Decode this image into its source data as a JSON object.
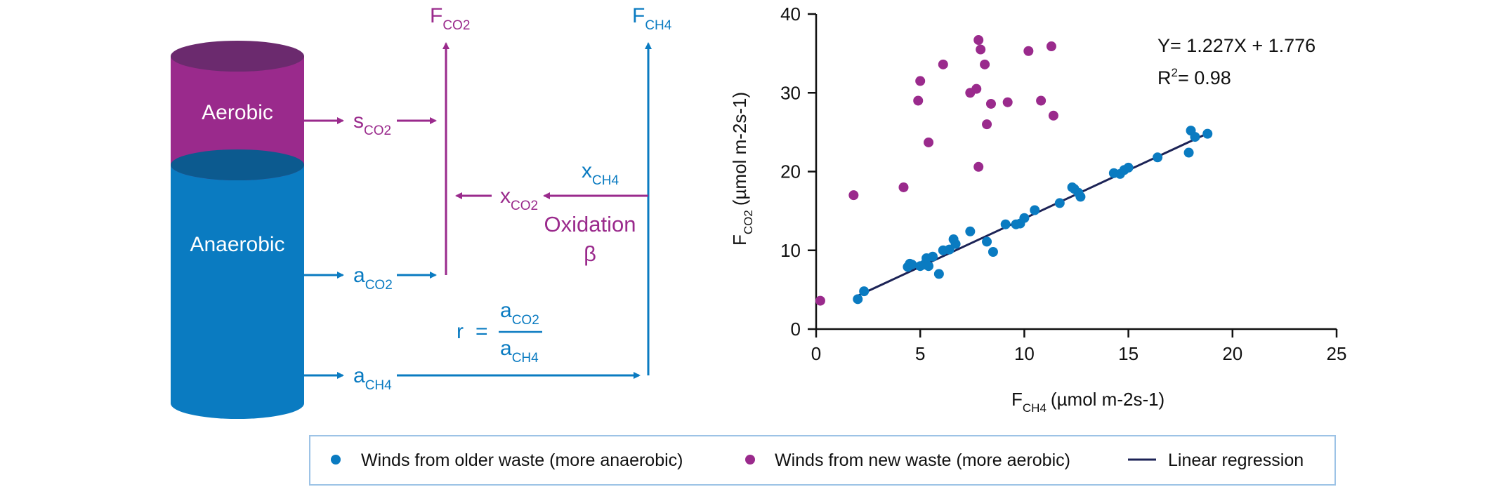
{
  "colors": {
    "blue": "#0a7bc1",
    "blue_dark": "#0c5a8f",
    "magenta": "#9a2a8c",
    "magenta_dark": "#6b2a6e",
    "navy": "#1c2356",
    "axis": "#111111",
    "legend_border": "#9dc3e6"
  },
  "diagram": {
    "aerobic_label": "Aerobic",
    "anaerobic_label": "Anaerobic",
    "F_co2": {
      "base": "F",
      "sub": "CO2"
    },
    "F_ch4": {
      "base": "F",
      "sub": "CH4"
    },
    "s_co2": {
      "base": "s",
      "sub": "CO2"
    },
    "x_co2": {
      "base": "x",
      "sub": "CO2"
    },
    "x_ch4": {
      "base": "x",
      "sub": "CH4"
    },
    "a_co2": {
      "base": "a",
      "sub": "CO2"
    },
    "a_ch4": {
      "base": "a",
      "sub": "CH4"
    },
    "oxidation_label": "Oxidation",
    "beta": "β",
    "ratio": {
      "lhs": "r",
      "eq": "=",
      "num": {
        "base": "a",
        "sub": "CO2"
      },
      "den": {
        "base": "a",
        "sub": "CH4"
      }
    }
  },
  "chart_data": {
    "type": "scatter",
    "xlabel": {
      "base": "F",
      "sub": "CH4",
      "unit": "(µmol m-2s-1)"
    },
    "ylabel": {
      "base": "F",
      "sub": "CO2",
      "unit": "(µmol m-2s-1)"
    },
    "xlim": [
      0,
      25
    ],
    "ylim": [
      0,
      40
    ],
    "xticks": [
      0,
      5,
      10,
      15,
      20,
      25
    ],
    "yticks": [
      0,
      10,
      20,
      30,
      40
    ],
    "annotation": {
      "equation": "Y= 1.227X + 1.776",
      "r2_label": "R",
      "r2_sup": "2",
      "r2_value": "= 0.98"
    },
    "series": [
      {
        "name": "Winds from older waste (more anaerobic)",
        "color": "#0a7bc1",
        "points": [
          [
            2.0,
            3.8
          ],
          [
            2.3,
            4.8
          ],
          [
            4.4,
            7.9
          ],
          [
            4.5,
            8.3
          ],
          [
            4.6,
            8.2
          ],
          [
            5.0,
            8.0
          ],
          [
            5.2,
            8.2
          ],
          [
            5.3,
            9.0
          ],
          [
            5.4,
            8.0
          ],
          [
            5.6,
            9.2
          ],
          [
            5.9,
            7.0
          ],
          [
            6.1,
            10.0
          ],
          [
            6.4,
            10.1
          ],
          [
            6.6,
            11.4
          ],
          [
            6.7,
            10.8
          ],
          [
            7.4,
            12.4
          ],
          [
            8.2,
            11.1
          ],
          [
            8.5,
            9.8
          ],
          [
            9.1,
            13.3
          ],
          [
            9.6,
            13.3
          ],
          [
            9.8,
            13.4
          ],
          [
            10.0,
            14.1
          ],
          [
            10.5,
            15.1
          ],
          [
            11.7,
            16.0
          ],
          [
            12.3,
            18.0
          ],
          [
            12.4,
            17.8
          ],
          [
            12.6,
            17.3
          ],
          [
            12.7,
            16.8
          ],
          [
            14.3,
            19.8
          ],
          [
            14.6,
            19.7
          ],
          [
            14.8,
            20.2
          ],
          [
            15.0,
            20.5
          ],
          [
            16.4,
            21.8
          ],
          [
            17.9,
            22.4
          ],
          [
            18.0,
            25.2
          ],
          [
            18.2,
            24.4
          ],
          [
            18.8,
            24.8
          ]
        ]
      },
      {
        "name": "Winds from new waste (more aerobic)",
        "color": "#9a2a8c",
        "points": [
          [
            0.2,
            3.6
          ],
          [
            1.8,
            17.0
          ],
          [
            4.2,
            18.0
          ],
          [
            4.9,
            29.0
          ],
          [
            5.0,
            31.5
          ],
          [
            5.4,
            23.7
          ],
          [
            6.1,
            33.6
          ],
          [
            7.4,
            30.0
          ],
          [
            7.7,
            30.5
          ],
          [
            7.8,
            36.7
          ],
          [
            7.8,
            20.6
          ],
          [
            7.9,
            35.5
          ],
          [
            8.1,
            33.6
          ],
          [
            8.2,
            26.0
          ],
          [
            8.4,
            28.6
          ],
          [
            9.2,
            28.8
          ],
          [
            10.2,
            35.3
          ],
          [
            10.8,
            29.0
          ],
          [
            11.3,
            35.9
          ],
          [
            11.4,
            27.1
          ]
        ]
      }
    ],
    "regression": {
      "name": "Linear regression",
      "slope": 1.227,
      "intercept": 1.776,
      "x_range": [
        2.0,
        18.8
      ],
      "color": "#1c2356"
    }
  }
}
